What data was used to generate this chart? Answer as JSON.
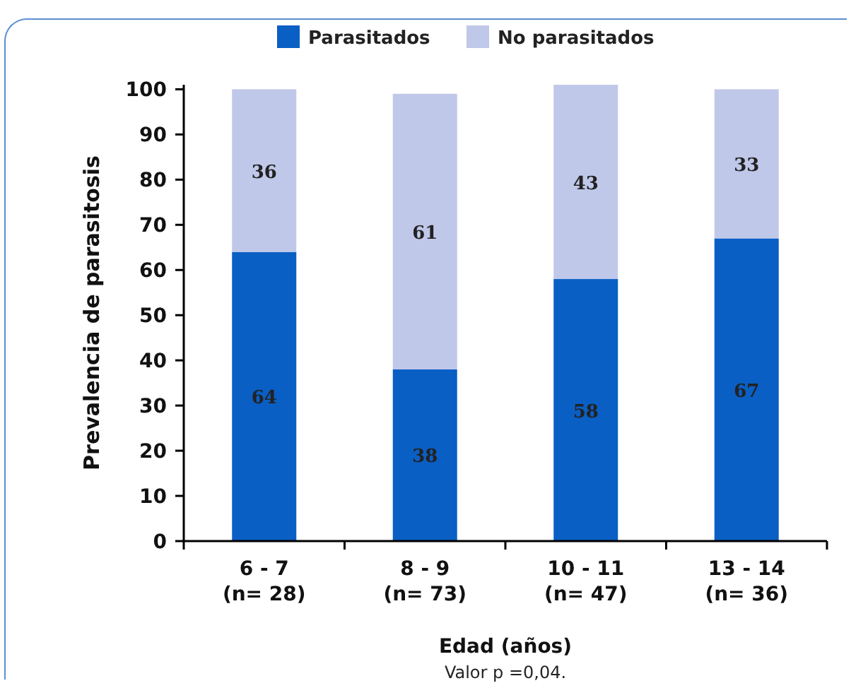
{
  "chart_data": {
    "type": "bar",
    "stacked": true,
    "xlabel": "Edad (años)",
    "ylabel": "Prevalencia de parasitosis",
    "categories": [
      "6 - 7\n(n= 28)",
      "8 - 9\n(n= 73)",
      "10 - 11\n(n= 47)",
      "13 - 14\n(n= 36)"
    ],
    "series": [
      {
        "name": "Parasitados",
        "color": "#0a5fc4",
        "values": [
          64,
          38,
          58,
          67
        ]
      },
      {
        "name": "No parasitados",
        "color": "#c0c8ea",
        "values": [
          36,
          61,
          43,
          33
        ]
      }
    ],
    "ylim": [
      0,
      101
    ],
    "yticks": [
      0,
      10,
      20,
      30,
      40,
      50,
      60,
      70,
      80,
      90,
      100
    ],
    "data_labels": true,
    "legend": "top",
    "grid": false,
    "annotations": [
      "Valor p =0,04."
    ]
  }
}
